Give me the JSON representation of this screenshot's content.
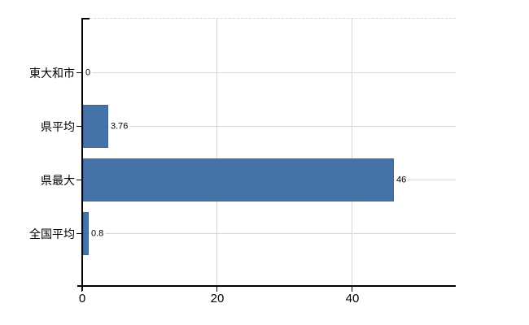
{
  "chart_data": {
    "type": "bar",
    "orientation": "horizontal",
    "title": "",
    "categories": [
      "東大和市",
      "県平均",
      "県最大",
      "全国平均"
    ],
    "values": [
      0,
      3.76,
      46,
      0.8
    ],
    "value_labels": [
      "0",
      "3.76",
      "46",
      "0.8"
    ],
    "x_ticks": [
      0,
      20,
      40
    ],
    "x_tick_labels": [
      "0",
      "20",
      "40"
    ],
    "xlim": [
      0,
      55.3
    ],
    "grid": true,
    "legend": "none",
    "colors": {
      "bar": "#4572a7",
      "bar_border": "#3c67a0",
      "gridline": "#d4dacf",
      "top_border_dashed": "#d6d6d6",
      "axis": "#000000",
      "text": "#000000",
      "background": "#ffffff"
    }
  }
}
